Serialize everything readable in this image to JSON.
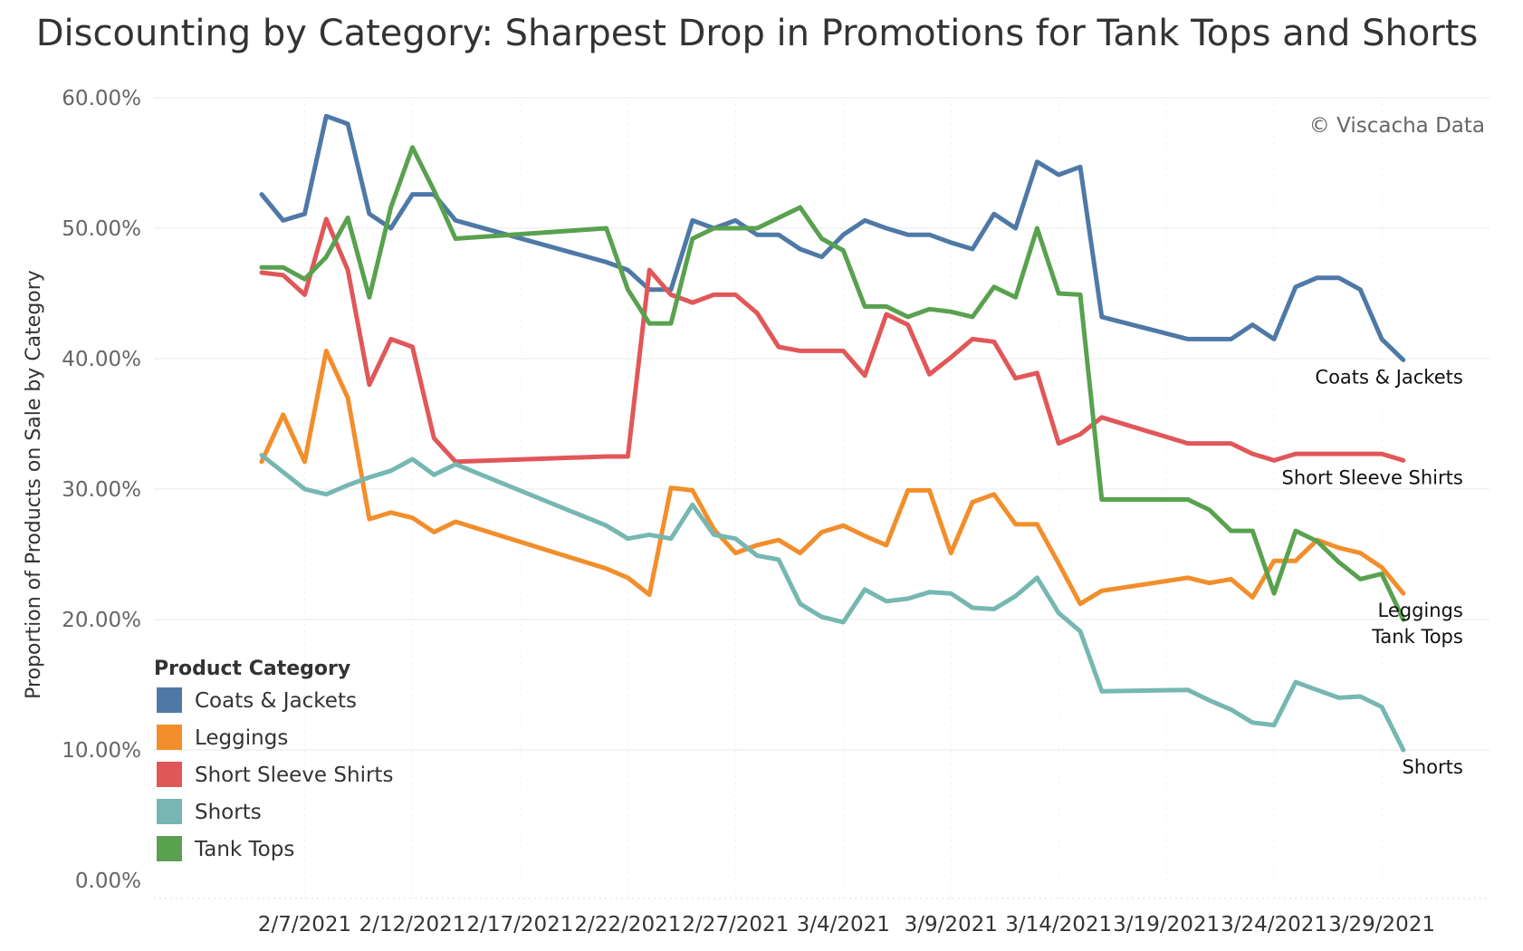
{
  "chart_data": {
    "type": "line",
    "title": "Discounting by Category: Sharpest Drop in Promotions for Tank Tops and Shorts",
    "xlabel": "",
    "ylabel": "Proportion of Products on Sale by Category",
    "credit": "© Viscacha Data",
    "legend_title": "Product Category",
    "legend_position": "bottom-left",
    "grid": true,
    "ylim": [
      0,
      60
    ],
    "yticks": [
      0,
      10,
      20,
      30,
      40,
      50,
      60
    ],
    "ytick_labels": [
      "0.00%",
      "10.00%",
      "20.00%",
      "30.00%",
      "40.00%",
      "50.00%",
      "60.00%"
    ],
    "xlim": [
      "2021-01-31",
      "2021-04-03"
    ],
    "xticks": [
      "2021-02-07",
      "2021-02-12",
      "2021-02-17",
      "2021-02-22",
      "2021-02-27",
      "2021-03-04",
      "2021-03-09",
      "2021-03-14",
      "2021-03-19",
      "2021-03-24",
      "2021-03-29"
    ],
    "xtick_labels": [
      "2/7/2021",
      "2/12/2021",
      "2/17/2021",
      "2/22/2021",
      "2/27/2021",
      "3/4/2021",
      "3/9/2021",
      "3/14/2021",
      "3/19/2021",
      "3/24/2021",
      "3/29/2021"
    ],
    "x": [
      "2021-02-05",
      "2021-02-06",
      "2021-02-07",
      "2021-02-08",
      "2021-02-09",
      "2021-02-10",
      "2021-02-11",
      "2021-02-12",
      "2021-02-13",
      "2021-02-14",
      "2021-02-21",
      "2021-02-22",
      "2021-02-23",
      "2021-02-24",
      "2021-02-25",
      "2021-02-26",
      "2021-02-27",
      "2021-02-28",
      "2021-03-01",
      "2021-03-02",
      "2021-03-03",
      "2021-03-04",
      "2021-03-05",
      "2021-03-06",
      "2021-03-07",
      "2021-03-08",
      "2021-03-09",
      "2021-03-10",
      "2021-03-11",
      "2021-03-12",
      "2021-03-13",
      "2021-03-14",
      "2021-03-15",
      "2021-03-16",
      "2021-03-20",
      "2021-03-21",
      "2021-03-22",
      "2021-03-23",
      "2021-03-24",
      "2021-03-25",
      "2021-03-26",
      "2021-03-27",
      "2021-03-28",
      "2021-03-29",
      "2021-03-30"
    ],
    "series": [
      {
        "name": "Coats & Jackets",
        "color": "#4e79a7",
        "end_label": "Coats & Jackets",
        "values": [
          52.6,
          50.6,
          51.1,
          58.6,
          58.0,
          51.1,
          50.0,
          52.6,
          52.6,
          50.6,
          47.4,
          46.8,
          45.3,
          45.3,
          50.6,
          50.0,
          50.6,
          49.5,
          49.5,
          48.4,
          47.8,
          49.5,
          50.6,
          50.0,
          49.5,
          49.5,
          48.9,
          48.4,
          51.1,
          50.0,
          55.1,
          54.1,
          54.7,
          43.2,
          41.5,
          41.5,
          41.5,
          42.6,
          41.5,
          45.5,
          46.2,
          46.2,
          45.3,
          41.5,
          39.9
        ]
      },
      {
        "name": "Leggings",
        "color": "#f28e2b",
        "end_label": "Leggings",
        "values": [
          32.1,
          35.7,
          32.1,
          40.6,
          37.0,
          27.7,
          28.2,
          27.8,
          26.7,
          27.5,
          23.9,
          23.2,
          21.9,
          30.1,
          29.9,
          26.9,
          25.1,
          25.7,
          26.1,
          25.1,
          26.7,
          27.2,
          26.4,
          25.7,
          29.9,
          29.9,
          25.1,
          29.0,
          29.6,
          27.3,
          27.3,
          24.3,
          21.2,
          22.2,
          23.2,
          22.8,
          23.1,
          21.7,
          24.5,
          24.5,
          26.1,
          25.5,
          25.1,
          24.0,
          22.0
        ]
      },
      {
        "name": "Short Sleeve Shirts",
        "color": "#e15759",
        "end_label": "Short Sleeve Shirts",
        "values": [
          46.6,
          46.4,
          44.9,
          50.7,
          46.8,
          38.0,
          41.5,
          40.9,
          33.9,
          32.1,
          32.5,
          32.5,
          46.8,
          44.9,
          44.3,
          44.9,
          44.9,
          43.5,
          40.9,
          40.6,
          40.6,
          40.6,
          38.7,
          43.4,
          42.6,
          38.8,
          40.1,
          41.5,
          41.3,
          38.5,
          38.9,
          33.5,
          34.2,
          35.5,
          33.5,
          33.5,
          33.5,
          32.7,
          32.2,
          32.7,
          32.7,
          32.7,
          32.7,
          32.7,
          32.2
        ]
      },
      {
        "name": "Shorts",
        "color": "#76b7b2",
        "end_label": "Shorts",
        "values": [
          32.6,
          31.3,
          30.0,
          29.6,
          30.3,
          30.9,
          31.4,
          32.3,
          31.1,
          31.9,
          27.2,
          26.2,
          26.5,
          26.2,
          28.8,
          26.5,
          26.2,
          24.9,
          24.6,
          21.2,
          20.2,
          19.8,
          22.3,
          21.4,
          21.6,
          22.1,
          22.0,
          20.9,
          20.8,
          21.8,
          23.2,
          20.5,
          19.1,
          14.5,
          14.6,
          13.8,
          13.1,
          12.1,
          11.9,
          15.2,
          14.6,
          14.0,
          14.1,
          13.3,
          10.0
        ]
      },
      {
        "name": "Tank Tops",
        "color": "#59a14f",
        "end_label": "Tank Tops",
        "values": [
          47.0,
          47.0,
          46.1,
          47.8,
          50.8,
          44.7,
          51.6,
          56.2,
          52.9,
          49.2,
          50.0,
          45.3,
          42.7,
          42.7,
          49.2,
          50.0,
          50.0,
          50.0,
          50.8,
          51.6,
          49.2,
          48.3,
          44.0,
          44.0,
          43.2,
          43.8,
          43.6,
          43.2,
          45.5,
          44.7,
          50.0,
          45.0,
          44.9,
          29.2,
          29.2,
          28.4,
          26.8,
          26.8,
          22.0,
          26.8,
          26.0,
          24.4,
          23.1,
          23.5,
          20.0
        ]
      }
    ]
  }
}
